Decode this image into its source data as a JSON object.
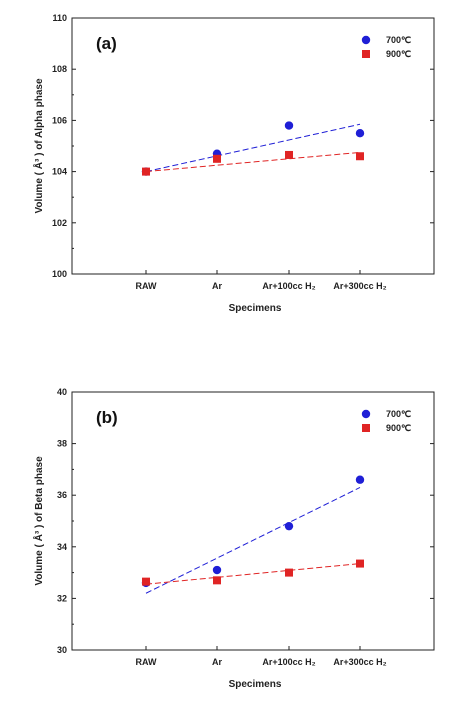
{
  "chart_data": [
    {
      "type": "scatter",
      "panel_label": "(a)",
      "categories": [
        "RAW",
        "Ar",
        "Ar+100cc H₂",
        "Ar+300cc H₂"
      ],
      "xlabel": "Specimens",
      "ylabel": "Volume ( Å³ ) of Alpha phase",
      "ylim": [
        100,
        110
      ],
      "yticks": [
        100,
        102,
        104,
        106,
        108,
        110
      ],
      "grid": false,
      "legend_position": "top-right",
      "series": [
        {
          "name": "700℃",
          "marker": "circle",
          "color": "#1f1fd6",
          "values": [
            104.0,
            104.7,
            105.8,
            105.5
          ],
          "trend": [
            104.0,
            105.85
          ]
        },
        {
          "name": "900℃",
          "marker": "square",
          "color": "#e02424",
          "values": [
            104.0,
            104.5,
            104.65,
            104.6
          ],
          "trend": [
            104.0,
            104.75
          ]
        }
      ]
    },
    {
      "type": "scatter",
      "panel_label": "(b)",
      "categories": [
        "RAW",
        "Ar",
        "Ar+100cc H₂",
        "Ar+300cc H₂"
      ],
      "xlabel": "Specimens",
      "ylabel": "Volume ( Å³ ) of Beta phase",
      "ylim": [
        30,
        40
      ],
      "yticks": [
        30,
        32,
        34,
        36,
        38,
        40
      ],
      "grid": false,
      "legend_position": "top-right",
      "series": [
        {
          "name": "700℃",
          "marker": "circle",
          "color": "#1f1fd6",
          "values": [
            32.6,
            33.1,
            34.8,
            36.6
          ],
          "trend": [
            32.2,
            36.3
          ]
        },
        {
          "name": "900℃",
          "marker": "square",
          "color": "#e02424",
          "values": [
            32.65,
            32.7,
            33.0,
            33.35
          ],
          "trend": [
            32.55,
            33.35
          ]
        }
      ]
    }
  ]
}
